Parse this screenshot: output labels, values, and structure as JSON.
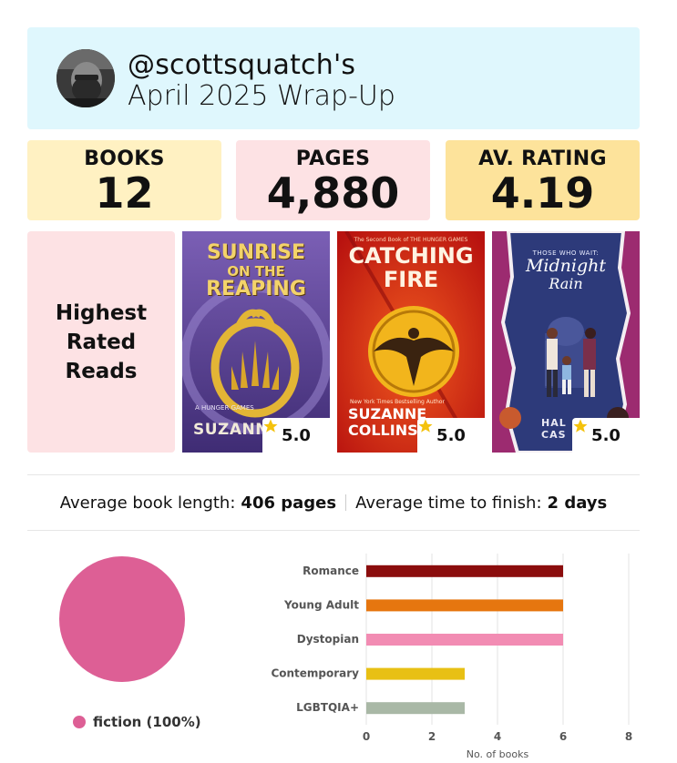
{
  "header": {
    "handle": "@scottsquatch's",
    "subtitle": "April 2025 Wrap-Up"
  },
  "stats": {
    "books_label": "BOOKS",
    "books_value": "12",
    "pages_label": "PAGES",
    "pages_value": "4,880",
    "rating_label": "AV. RATING",
    "rating_value": "4.19"
  },
  "colors": {
    "header_bg": "#dff7fd",
    "books_bg": "#fff1c2",
    "pages_bg": "#fde2e4",
    "rating_bg": "#fde39b",
    "highest_bg": "#fde2e4",
    "star": "#f4c20d"
  },
  "highest": {
    "title": "Highest Rated Reads",
    "books": [
      {
        "title_line1": "SUNRISE",
        "title_line2": "ON THE",
        "title_line3": "REAPING",
        "author": "SUZANNE",
        "small_text": "A HUNGER GAMES",
        "rating": "5.0",
        "icon": "star-icon"
      },
      {
        "small_text": "The Second Book of THE HUNGER GAMES",
        "title_line1": "CATCHING",
        "title_line2": "FIRE",
        "tagline": "New York Times Bestselling Author",
        "author_line1": "SUZANNE",
        "author_line2": "COLLINS",
        "rating": "5.0",
        "icon": "star-icon"
      },
      {
        "small_text": "THOSE WHO WAIT:",
        "title_line1": "Midnight",
        "title_line2": "Rain",
        "author_line1": "HAL",
        "author_line2": "CAS",
        "rating": "5.0",
        "icon": "star-icon"
      }
    ]
  },
  "averages": {
    "length_label": "Average book length:",
    "length_value": "406 pages",
    "time_label": "Average time to finish:",
    "time_value": "2 days"
  },
  "pie": {
    "legend": "fiction (100%)",
    "color": "#dd5f95"
  },
  "chart_data": {
    "type": "bar",
    "orientation": "horizontal",
    "categories": [
      "Romance",
      "Young Adult",
      "Dystopian",
      "Contemporary",
      "LGBTQIA+"
    ],
    "values": [
      6,
      6,
      6,
      3,
      3
    ],
    "colors": [
      "#8b0d0d",
      "#e6760f",
      "#f28cb3",
      "#e8c014",
      "#a9b8a6"
    ],
    "xlabel": "No. of books",
    "ylabel": "",
    "xlim": [
      0,
      8
    ],
    "xticks": [
      0,
      2,
      4,
      6,
      8
    ],
    "grid": true
  }
}
